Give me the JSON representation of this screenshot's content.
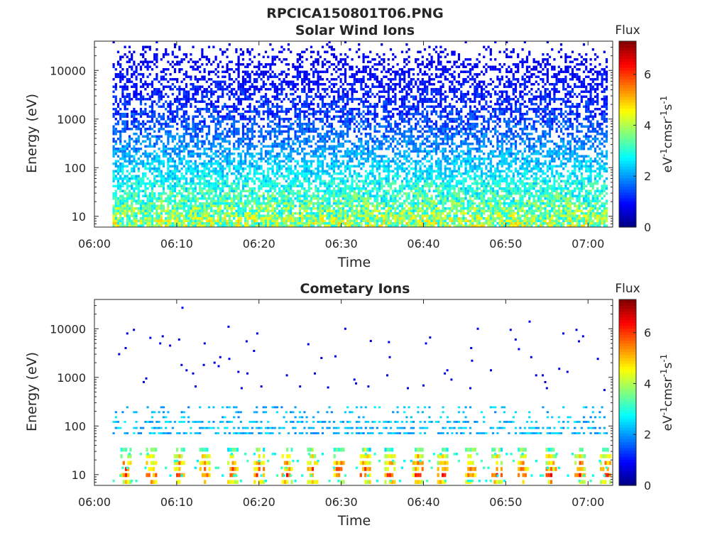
{
  "figure": {
    "suptitle": "RPCICA150801T06.PNG"
  },
  "colormap": "jet",
  "chart_data": [
    {
      "type": "heatmap",
      "title": "Solar Wind Ions",
      "xlabel": "Time",
      "ylabel": "Energy (eV)",
      "x_ticks": [
        "06:00",
        "06:10",
        "06:20",
        "06:30",
        "06:40",
        "06:50",
        "07:00"
      ],
      "x_range_minutes": [
        0,
        63
      ],
      "data_start_minute": 2.2,
      "data_end_minute": 62.5,
      "y_scale": "log",
      "y_ticks": [
        "10",
        "100",
        "1000",
        "10000"
      ],
      "y_range": [
        6,
        40000
      ],
      "colorbar": {
        "title": "Flux",
        "units": "eV-1cm-2sr-1s-1",
        "ticks": [
          "0",
          "2",
          "4",
          "6"
        ],
        "range": [
          0,
          7.3
        ]
      },
      "density_profile": [
        {
          "energy": 8,
          "density": 0.9,
          "flux_min": 2.6,
          "flux_max": 5.0
        },
        {
          "energy": 30,
          "density": 0.75,
          "flux_min": 2.3,
          "flux_max": 3.8
        },
        {
          "energy": 100,
          "density": 0.6,
          "flux_min": 2.0,
          "flux_max": 2.9
        },
        {
          "energy": 300,
          "density": 0.55,
          "flux_min": 1.4,
          "flux_max": 2.3
        },
        {
          "energy": 1000,
          "density": 0.55,
          "flux_min": 0.9,
          "flux_max": 1.8
        },
        {
          "energy": 5000,
          "density": 0.5,
          "flux_min": 0.7,
          "flux_max": 1.3
        },
        {
          "energy": 15000,
          "density": 0.35,
          "flux_min": 0.6,
          "flux_max": 1.1
        },
        {
          "energy": 40000,
          "density": 0.01,
          "flux_min": 0.5,
          "flux_max": 1.0
        }
      ]
    },
    {
      "type": "heatmap",
      "title": "Cometary Ions",
      "xlabel": "Time",
      "ylabel": "Energy (eV)",
      "x_ticks": [
        "06:00",
        "06:10",
        "06:20",
        "06:30",
        "06:40",
        "06:50",
        "07:00"
      ],
      "x_range_minutes": [
        0,
        63
      ],
      "data_start_minute": 2.2,
      "data_end_minute": 62.5,
      "y_scale": "log",
      "y_ticks": [
        "10",
        "100",
        "1000",
        "10000"
      ],
      "y_range": [
        6,
        40000
      ],
      "colorbar": {
        "title": "Flux",
        "units": "eV-1cm-2sr-1s-1",
        "ticks": [
          "0",
          "2",
          "4",
          "6"
        ],
        "range": [
          0,
          7.3
        ]
      },
      "low_energy_bursts_minutes": [
        3.7,
        6.8,
        10.2,
        13.3,
        16.7,
        19.9,
        23.3,
        26.4,
        29.6,
        32.8,
        35.8,
        39.2,
        42.2,
        45.6,
        48.8,
        52.0,
        55.4,
        58.9,
        62.0
      ],
      "band_100eV_flux": [
        1.8,
        2.7
      ],
      "sparse_points": [
        {
          "t": 3.0,
          "e": 3000,
          "f": 0.7
        },
        {
          "t": 3.8,
          "e": 4000,
          "f": 0.7
        },
        {
          "t": 4.0,
          "e": 8000,
          "f": 0.8
        },
        {
          "t": 4.8,
          "e": 9500,
          "f": 0.7
        },
        {
          "t": 6.0,
          "e": 800,
          "f": 0.8
        },
        {
          "t": 6.3,
          "e": 950,
          "f": 0.7
        },
        {
          "t": 6.8,
          "e": 6500,
          "f": 0.7
        },
        {
          "t": 8.0,
          "e": 5000,
          "f": 0.8
        },
        {
          "t": 8.3,
          "e": 7000,
          "f": 0.7
        },
        {
          "t": 9.2,
          "e": 4500,
          "f": 0.7
        },
        {
          "t": 10.3,
          "e": 6000,
          "f": 0.7
        },
        {
          "t": 10.6,
          "e": 1800,
          "f": 0.8
        },
        {
          "t": 10.7,
          "e": 27000,
          "f": 0.9
        },
        {
          "t": 11.2,
          "e": 1400,
          "f": 0.7
        },
        {
          "t": 12.0,
          "e": 1200,
          "f": 0.7
        },
        {
          "t": 12.3,
          "e": 650,
          "f": 0.7
        },
        {
          "t": 13.3,
          "e": 1800,
          "f": 0.7
        },
        {
          "t": 13.4,
          "e": 5000,
          "f": 0.8
        },
        {
          "t": 14.6,
          "e": 2000,
          "f": 0.7
        },
        {
          "t": 15.1,
          "e": 1700,
          "f": 0.7
        },
        {
          "t": 15.3,
          "e": 2600,
          "f": 0.8
        },
        {
          "t": 16.3,
          "e": 11000,
          "f": 0.8
        },
        {
          "t": 16.4,
          "e": 2400,
          "f": 0.7
        },
        {
          "t": 17.5,
          "e": 1300,
          "f": 0.7
        },
        {
          "t": 17.9,
          "e": 600,
          "f": 0.7
        },
        {
          "t": 18.5,
          "e": 5500,
          "f": 0.8
        },
        {
          "t": 18.6,
          "e": 1200,
          "f": 0.7
        },
        {
          "t": 19.4,
          "e": 3500,
          "f": 0.7
        },
        {
          "t": 19.8,
          "e": 8000,
          "f": 0.8
        },
        {
          "t": 20.3,
          "e": 650,
          "f": 0.7
        },
        {
          "t": 23.4,
          "e": 1100,
          "f": 0.7
        },
        {
          "t": 25.0,
          "e": 650,
          "f": 0.7
        },
        {
          "t": 26.0,
          "e": 4800,
          "f": 0.8
        },
        {
          "t": 26.8,
          "e": 1200,
          "f": 0.7
        },
        {
          "t": 27.6,
          "e": 2500,
          "f": 0.7
        },
        {
          "t": 28.4,
          "e": 620,
          "f": 0.7
        },
        {
          "t": 29.3,
          "e": 2700,
          "f": 0.8
        },
        {
          "t": 30.5,
          "e": 10000,
          "f": 0.8
        },
        {
          "t": 31.6,
          "e": 900,
          "f": 0.7
        },
        {
          "t": 31.8,
          "e": 750,
          "f": 0.7
        },
        {
          "t": 33.3,
          "e": 650,
          "f": 0.7
        },
        {
          "t": 33.6,
          "e": 5600,
          "f": 0.8
        },
        {
          "t": 35.8,
          "e": 5300,
          "f": 0.7
        },
        {
          "t": 35.9,
          "e": 2600,
          "f": 0.7
        },
        {
          "t": 35.6,
          "e": 1100,
          "f": 0.7
        },
        {
          "t": 38.1,
          "e": 600,
          "f": 0.7
        },
        {
          "t": 40.0,
          "e": 680,
          "f": 0.7
        },
        {
          "t": 40.3,
          "e": 5000,
          "f": 0.8
        },
        {
          "t": 40.8,
          "e": 6600,
          "f": 0.7
        },
        {
          "t": 42.6,
          "e": 1200,
          "f": 0.7
        },
        {
          "t": 42.9,
          "e": 1400,
          "f": 0.8
        },
        {
          "t": 43.4,
          "e": 900,
          "f": 0.7
        },
        {
          "t": 45.7,
          "e": 600,
          "f": 0.7
        },
        {
          "t": 45.8,
          "e": 4000,
          "f": 0.8
        },
        {
          "t": 45.9,
          "e": 2200,
          "f": 0.7
        },
        {
          "t": 46.6,
          "e": 10000,
          "f": 0.8
        },
        {
          "t": 48.2,
          "e": 1400,
          "f": 0.7
        },
        {
          "t": 50.6,
          "e": 9500,
          "f": 0.8
        },
        {
          "t": 51.2,
          "e": 6000,
          "f": 0.7
        },
        {
          "t": 51.6,
          "e": 3800,
          "f": 0.7
        },
        {
          "t": 52.9,
          "e": 14000,
          "f": 0.8
        },
        {
          "t": 53.1,
          "e": 2600,
          "f": 0.7
        },
        {
          "t": 53.7,
          "e": 1100,
          "f": 0.7
        },
        {
          "t": 54.5,
          "e": 1100,
          "f": 0.7
        },
        {
          "t": 54.8,
          "e": 800,
          "f": 0.7
        },
        {
          "t": 55.0,
          "e": 600,
          "f": 0.7
        },
        {
          "t": 56.5,
          "e": 1500,
          "f": 0.7
        },
        {
          "t": 57.0,
          "e": 8000,
          "f": 0.8
        },
        {
          "t": 57.5,
          "e": 1300,
          "f": 0.7
        },
        {
          "t": 58.6,
          "e": 9500,
          "f": 0.8
        },
        {
          "t": 58.9,
          "e": 5500,
          "f": 0.7
        },
        {
          "t": 59.4,
          "e": 7000,
          "f": 0.7
        },
        {
          "t": 61.2,
          "e": 2400,
          "f": 0.7
        },
        {
          "t": 62.0,
          "e": 550,
          "f": 0.7
        }
      ]
    }
  ]
}
